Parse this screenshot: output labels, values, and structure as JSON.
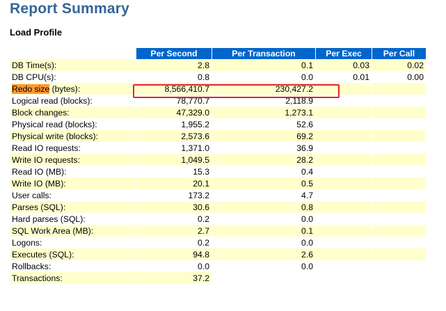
{
  "page": {
    "title": "Report Summary",
    "section_title": "Load Profile"
  },
  "table": {
    "headers": [
      "Per Second",
      "Per Transaction",
      "Per Exec",
      "Per Call"
    ],
    "rows": [
      {
        "label": "DB Time(s):",
        "per_second": "2.8",
        "per_transaction": "0.1",
        "per_exec": "0.03",
        "per_call": "0.02"
      },
      {
        "label": "DB CPU(s):",
        "per_second": "0.8",
        "per_transaction": "0.0",
        "per_exec": "0.01",
        "per_call": "0.00"
      },
      {
        "label_highlight": "Redo size",
        "label_rest": " (bytes):",
        "per_second": "8,566,410.7",
        "per_transaction": "230,427.2",
        "per_exec": "",
        "per_call": ""
      },
      {
        "label": "Logical read (blocks):",
        "per_second": "78,770.7",
        "per_transaction": "2,118.9",
        "per_exec": "",
        "per_call": ""
      },
      {
        "label": "Block changes:",
        "per_second": "47,329.0",
        "per_transaction": "1,273.1",
        "per_exec": "",
        "per_call": ""
      },
      {
        "label": "Physical read (blocks):",
        "per_second": "1,955.2",
        "per_transaction": "52.6",
        "per_exec": "",
        "per_call": ""
      },
      {
        "label": "Physical write (blocks):",
        "per_second": "2,573.6",
        "per_transaction": "69.2",
        "per_exec": "",
        "per_call": ""
      },
      {
        "label": "Read IO requests:",
        "per_second": "1,371.0",
        "per_transaction": "36.9",
        "per_exec": "",
        "per_call": ""
      },
      {
        "label": "Write IO requests:",
        "per_second": "1,049.5",
        "per_transaction": "28.2",
        "per_exec": "",
        "per_call": ""
      },
      {
        "label": "Read IO (MB):",
        "per_second": "15.3",
        "per_transaction": "0.4",
        "per_exec": "",
        "per_call": ""
      },
      {
        "label": "Write IO (MB):",
        "per_second": "20.1",
        "per_transaction": "0.5",
        "per_exec": "",
        "per_call": ""
      },
      {
        "label": "User calls:",
        "per_second": "173.2",
        "per_transaction": "4.7",
        "per_exec": "",
        "per_call": ""
      },
      {
        "label": "Parses (SQL):",
        "per_second": "30.6",
        "per_transaction": "0.8",
        "per_exec": "",
        "per_call": ""
      },
      {
        "label": "Hard parses (SQL):",
        "per_second": "0.2",
        "per_transaction": "0.0",
        "per_exec": "",
        "per_call": ""
      },
      {
        "label": "SQL Work Area (MB):",
        "per_second": "2.7",
        "per_transaction": "0.1",
        "per_exec": "",
        "per_call": ""
      },
      {
        "label": "Logons:",
        "per_second": "0.2",
        "per_transaction": "0.0",
        "per_exec": "",
        "per_call": ""
      },
      {
        "label": "Executes (SQL):",
        "per_second": "94.8",
        "per_transaction": "2.6",
        "per_exec": "",
        "per_call": ""
      },
      {
        "label": "Rollbacks:",
        "per_second": "0.0",
        "per_transaction": "0.0",
        "per_exec": "",
        "per_call": ""
      },
      {
        "label": "Transactions:",
        "per_second": "37.2",
        "per_transaction": "",
        "per_exec": "",
        "per_call": ""
      }
    ]
  },
  "colors": {
    "title": "#336699",
    "header_bg": "#0066cc",
    "row_stripe": "#ffffcc",
    "label_highlight": "#ff9933",
    "annotation_box": "#e0262a"
  }
}
